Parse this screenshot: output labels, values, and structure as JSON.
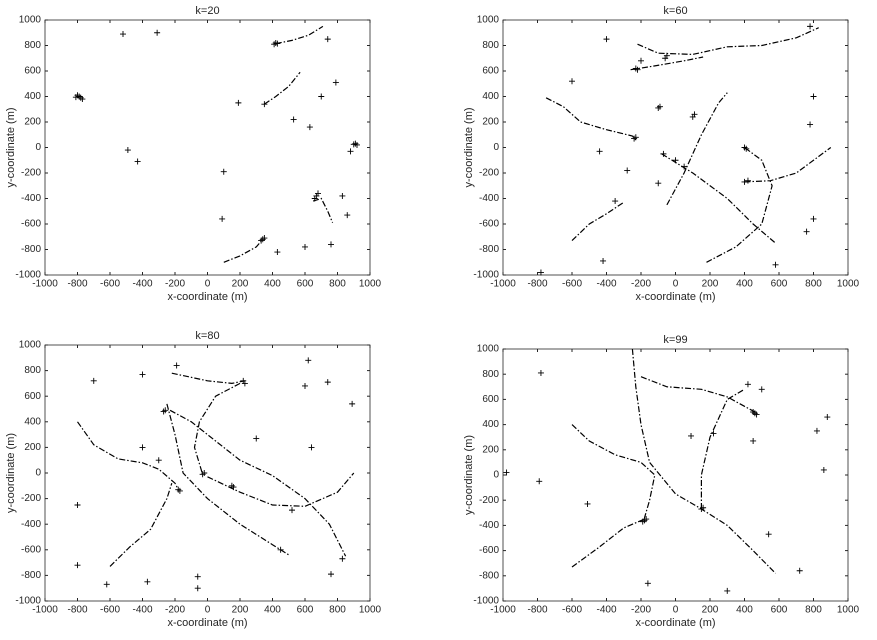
{
  "chart_data": [
    {
      "type": "scatter",
      "title": "k=20",
      "xlabel": "x-coordinate (m)",
      "ylabel": "y-coordinate (m)",
      "xlim": [
        -1000,
        1000
      ],
      "ylim": [
        -1000,
        1000
      ],
      "xticks": [
        -1000,
        -800,
        -600,
        -400,
        -200,
        0,
        200,
        400,
        600,
        800,
        1000
      ],
      "yticks": [
        -1000,
        -800,
        -600,
        -400,
        -200,
        0,
        200,
        400,
        600,
        800,
        1000
      ],
      "series": [
        {
          "color": "#000000",
          "line": "dashdot",
          "x": [
            420,
            520,
            620,
            710
          ],
          "values": [
            815,
            840,
            880,
            950
          ]
        },
        {
          "color": "#000000",
          "line": "dashdot",
          "x": [
            350,
            420,
            500,
            570
          ],
          "values": [
            340,
            400,
            480,
            590
          ]
        },
        {
          "color": "#000000",
          "line": "dashdot",
          "x": [
            100,
            200,
            300,
            340
          ],
          "values": [
            -900,
            -850,
            -780,
            -720
          ]
        },
        {
          "color": "#000000",
          "line": "dashdot",
          "x": [
            650,
            700,
            740,
            770
          ],
          "values": [
            -420,
            -400,
            -500,
            -590
          ]
        },
        {
          "color": "#000000",
          "marker": "+",
          "x": [
            -520,
            -310,
            -490,
            -430,
            190,
            350,
            700,
            790,
            740,
            530,
            630,
            100,
            90,
            600,
            760,
            430,
            830,
            860,
            880,
            -790,
            -780,
            -800,
            -770,
            -810,
            420,
            430,
            410,
            670,
            680,
            660,
            340,
            330,
            350,
            910,
            920,
            900
          ],
          "values": [
            890,
            900,
            -20,
            -110,
            350,
            340,
            400,
            510,
            850,
            220,
            160,
            -190,
            -560,
            -780,
            -760,
            -820,
            -380,
            -530,
            -30,
            400,
            390,
            410,
            380,
            395,
            820,
            815,
            810,
            -380,
            -360,
            -400,
            -720,
            -730,
            -710,
            30,
            20,
            25
          ]
        }
      ]
    },
    {
      "type": "scatter",
      "title": "k=60",
      "xlabel": "x-coordinate (m)",
      "ylabel": "y-coordinate (m)",
      "xlim": [
        -1000,
        1000
      ],
      "ylim": [
        -1000,
        1000
      ],
      "xticks": [
        -1000,
        -800,
        -600,
        -400,
        -200,
        0,
        200,
        400,
        600,
        800,
        1000
      ],
      "yticks": [
        -1000,
        -800,
        -600,
        -400,
        -200,
        0,
        200,
        400,
        600,
        800,
        1000
      ],
      "series": [
        {
          "color": "#000000",
          "line": "dashdot",
          "x": [
            -220,
            -100,
            100,
            300,
            500,
            700,
            830
          ],
          "values": [
            810,
            740,
            730,
            790,
            800,
            860,
            940
          ]
        },
        {
          "color": "#000000",
          "line": "dashdot",
          "x": [
            -260,
            -120,
            50,
            160
          ],
          "values": [
            610,
            640,
            680,
            710
          ]
        },
        {
          "color": "#000000",
          "line": "dashdot",
          "x": [
            -750,
            -650,
            -550,
            -400,
            -250,
            -230
          ],
          "values": [
            390,
            320,
            200,
            140,
            90,
            60
          ]
        },
        {
          "color": "#000000",
          "line": "dashdot",
          "x": [
            -600,
            -500,
            -400,
            -300
          ],
          "values": [
            -730,
            -600,
            -520,
            -430
          ]
        },
        {
          "color": "#000000",
          "line": "dashdot",
          "x": [
            -50,
            50,
            150,
            250,
            300
          ],
          "values": [
            -450,
            -200,
            100,
            350,
            430
          ]
        },
        {
          "color": "#000000",
          "line": "dashdot",
          "x": [
            -80,
            100,
            300,
            450,
            580
          ],
          "values": [
            -50,
            -200,
            -400,
            -600,
            -750
          ]
        },
        {
          "color": "#000000",
          "line": "dashdot",
          "x": [
            400,
            550,
            700,
            850,
            900
          ],
          "values": [
            -270,
            -260,
            -200,
            -50,
            0
          ]
        },
        {
          "color": "#000000",
          "line": "dashdot",
          "x": [
            180,
            350,
            500,
            560,
            500,
            400
          ],
          "values": [
            -900,
            -780,
            -600,
            -300,
            -100,
            0
          ]
        },
        {
          "color": "#000000",
          "marker": "+",
          "x": [
            -600,
            -400,
            -440,
            -420,
            -780,
            -280,
            -350,
            -100,
            -70,
            50,
            800,
            780,
            780,
            800,
            760,
            580,
            -200,
            0,
            -230,
            -220,
            -60,
            -50,
            -100,
            -90,
            100,
            110,
            -240,
            -230,
            400,
            410,
            400,
            420
          ],
          "values": [
            520,
            850,
            -30,
            -890,
            -980,
            -180,
            -420,
            -280,
            -50,
            -150,
            400,
            180,
            950,
            -560,
            -660,
            -920,
            680,
            -100,
            620,
            610,
            700,
            720,
            310,
            320,
            240,
            260,
            70,
            80,
            0,
            -10,
            -270,
            -260
          ]
        }
      ]
    },
    {
      "type": "scatter",
      "title": "k=80",
      "xlabel": "x-coordinate (m)",
      "ylabel": "y-coordinate (m)",
      "xlim": [
        -1000,
        1000
      ],
      "ylim": [
        -1000,
        1000
      ],
      "xticks": [
        -1000,
        -800,
        -600,
        -400,
        -200,
        0,
        200,
        400,
        600,
        800,
        1000
      ],
      "yticks": [
        -1000,
        -800,
        -600,
        -400,
        -200,
        0,
        200,
        400,
        600,
        800,
        1000
      ],
      "series": [
        {
          "color": "#000000",
          "line": "dashdot",
          "x": [
            -800,
            -700,
            -550,
            -400,
            -300,
            -200,
            -180
          ],
          "values": [
            400,
            220,
            110,
            80,
            30,
            -80,
            -130
          ]
        },
        {
          "color": "#000000",
          "line": "dashdot",
          "x": [
            -600,
            -480,
            -350,
            -250,
            -220
          ],
          "values": [
            -730,
            -580,
            -440,
            -200,
            -80
          ]
        },
        {
          "color": "#000000",
          "line": "dashdot",
          "x": [
            -220,
            0,
            150,
            230
          ],
          "values": [
            780,
            720,
            700,
            720
          ]
        },
        {
          "color": "#000000",
          "line": "dashdot",
          "x": [
            -230,
            -100,
            50,
            200,
            400,
            600,
            750,
            850
          ],
          "values": [
            490,
            400,
            250,
            100,
            -20,
            -200,
            -400,
            -650
          ]
        },
        {
          "color": "#000000",
          "line": "dashdot",
          "x": [
            200,
            50,
            -50,
            -80,
            -30
          ],
          "values": [
            700,
            600,
            400,
            200,
            -10
          ]
        },
        {
          "color": "#000000",
          "line": "dashdot",
          "x": [
            -250,
            -200,
            -150,
            0,
            200,
            400,
            500
          ],
          "values": [
            540,
            300,
            0,
            -200,
            -400,
            -560,
            -640
          ]
        },
        {
          "color": "#000000",
          "line": "dashdot",
          "x": [
            0,
            200,
            400,
            600,
            800,
            900
          ],
          "values": [
            -30,
            -150,
            -250,
            -260,
            -150,
            0
          ]
        },
        {
          "color": "#000000",
          "marker": "+",
          "x": [
            -700,
            -800,
            -800,
            -620,
            -370,
            -60,
            -60,
            -400,
            -190,
            300,
            620,
            600,
            740,
            640,
            890,
            760,
            830,
            520,
            450,
            -400,
            -300,
            -270,
            -260,
            220,
            230,
            -180,
            -170,
            -30,
            -20,
            160,
            150
          ],
          "values": [
            720,
            -250,
            -720,
            -870,
            -850,
            -810,
            -900,
            770,
            840,
            270,
            880,
            680,
            710,
            200,
            540,
            -790,
            -670,
            -290,
            -600,
            200,
            100,
            480,
            490,
            720,
            700,
            -130,
            -140,
            -10,
            0,
            -110,
            -100
          ]
        }
      ]
    },
    {
      "type": "scatter",
      "title": "k=99",
      "xlabel": "x-coordinate (m)",
      "ylabel": "y-coordinate (m)",
      "xlim": [
        -1000,
        1000
      ],
      "ylim": [
        -1000,
        1000
      ],
      "xticks": [
        -1000,
        -800,
        -600,
        -400,
        -200,
        0,
        200,
        400,
        600,
        800,
        1000
      ],
      "yticks": [
        -1000,
        -800,
        -600,
        -400,
        -200,
        0,
        200,
        400,
        600,
        800,
        1000
      ],
      "series": [
        {
          "color": "#000000",
          "line": "dashdot",
          "x": [
            -600,
            -450,
            -300,
            -180
          ],
          "values": [
            -730,
            -580,
            -420,
            -350
          ]
        },
        {
          "color": "#000000",
          "line": "dashdot",
          "x": [
            -600,
            -500,
            -350,
            -200,
            -120,
            -150,
            -180
          ],
          "values": [
            400,
            270,
            160,
            100,
            0,
            -200,
            -340
          ]
        },
        {
          "color": "#000000",
          "line": "dashdot",
          "x": [
            -250,
            -230,
            -200,
            -150,
            0,
            150,
            300,
            450,
            580
          ],
          "values": [
            1000,
            700,
            400,
            100,
            -150,
            -270,
            -400,
            -600,
            -780
          ]
        },
        {
          "color": "#000000",
          "line": "dashdot",
          "x": [
            -200,
            -50,
            150,
            300,
            460
          ],
          "values": [
            780,
            700,
            680,
            620,
            500
          ]
        },
        {
          "color": "#000000",
          "line": "dashdot",
          "x": [
            150,
            150,
            200,
            300,
            400
          ],
          "values": [
            -270,
            0,
            300,
            600,
            680
          ]
        },
        {
          "color": "#000000",
          "marker": "+",
          "x": [
            -980,
            -790,
            -780,
            -510,
            -160,
            90,
            220,
            420,
            450,
            500,
            540,
            300,
            720,
            820,
            860,
            880,
            -180,
            -170,
            -190,
            460,
            450,
            470,
            150,
            160
          ],
          "values": [
            20,
            -50,
            810,
            -230,
            -860,
            310,
            330,
            720,
            270,
            680,
            -470,
            -920,
            -760,
            350,
            40,
            460,
            -360,
            -350,
            -370,
            490,
            500,
            480,
            -270,
            -260
          ]
        }
      ]
    }
  ]
}
